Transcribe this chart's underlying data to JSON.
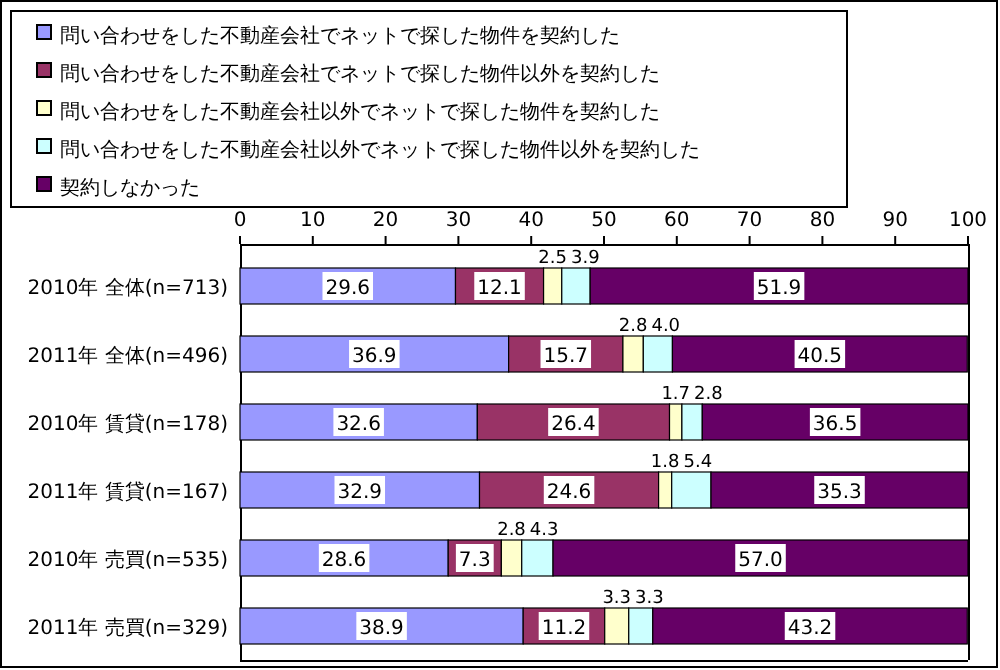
{
  "chart_data": {
    "type": "bar",
    "orientation": "horizontal",
    "stacked": true,
    "legend": "top",
    "grid": false,
    "categories": [
      "2010年 全体(n=713)",
      "2011年 全体(n=496)",
      "2010年 賃貸(n=178)",
      "2011年 賃貸(n=167)",
      "2010年 売買(n=535)",
      "2011年 売買(n=329)"
    ],
    "xlim": [
      0,
      100
    ],
    "xticks": [
      0,
      10,
      20,
      30,
      40,
      50,
      60,
      70,
      80,
      90,
      100
    ],
    "series": [
      {
        "name": "問い合わせをした不動産会社でネットで探した物件を契約した",
        "color": "#9999ff",
        "values": [
          29.6,
          36.9,
          32.6,
          32.9,
          28.6,
          38.9
        ],
        "value_labels": [
          "29.6",
          "36.9",
          "32.6",
          "32.9",
          "28.6",
          "38.9"
        ]
      },
      {
        "name": "問い合わせをした不動産会社でネットで探した物件以外を契約した",
        "color": "#993366",
        "values": [
          12.1,
          15.7,
          26.4,
          24.6,
          7.3,
          11.2
        ],
        "value_labels": [
          "12.1",
          "15.7",
          "26.4",
          "24.6",
          "7.3",
          "11.2"
        ]
      },
      {
        "name": "問い合わせをした不動産会社以外でネットで探した物件を契約した",
        "color": "#ffffcc",
        "values": [
          2.5,
          2.8,
          1.7,
          1.8,
          2.8,
          3.3
        ],
        "value_labels": [
          "2.5",
          "2.8",
          "1.7",
          "1.8",
          "2.8",
          "3.3"
        ]
      },
      {
        "name": "問い合わせをした不動産会社以外でネットで探した物件以外を契約した",
        "color": "#ccffff",
        "values": [
          3.9,
          4.0,
          2.8,
          5.4,
          4.3,
          3.3
        ],
        "value_labels": [
          "3.9",
          "4.0",
          "2.8",
          "5.4",
          "4.3",
          "3.3"
        ]
      },
      {
        "name": "契約しなかった",
        "color": "#660066",
        "values": [
          51.9,
          40.5,
          36.5,
          35.3,
          57.0,
          43.2
        ],
        "value_labels": [
          "51.9",
          "40.5",
          "36.5",
          "35.3",
          "57.0",
          "43.2"
        ]
      }
    ]
  }
}
